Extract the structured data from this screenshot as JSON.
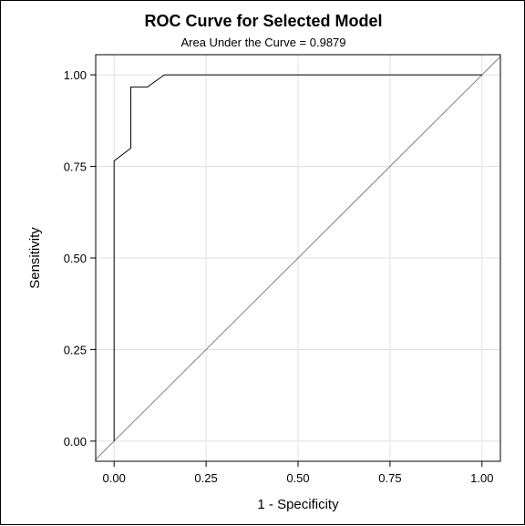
{
  "chart_data": {
    "type": "line",
    "title": "ROC Curve for Selected Model",
    "subtitle": "Area Under the Curve = 0.9879",
    "xlabel": "1 - Specificity",
    "ylabel": "Sensitivity",
    "xlim": [
      -0.05,
      1.05
    ],
    "ylim": [
      -0.055,
      1.055
    ],
    "xticks": [
      0.0,
      0.25,
      0.5,
      0.75,
      1.0
    ],
    "yticks": [
      0.0,
      0.25,
      0.5,
      0.75,
      1.0
    ],
    "xtick_labels": [
      "0.00",
      "0.25",
      "0.50",
      "0.75",
      "1.00"
    ],
    "ytick_labels": [
      "0.00",
      "0.25",
      "0.50",
      "0.75",
      "1.00"
    ],
    "grid": true,
    "series": [
      {
        "x": [
          0.0,
          0.0,
          0.0,
          0.0455,
          0.0455,
          0.0455,
          0.0909,
          0.1364,
          0.1364,
          1.0
        ],
        "y": [
          0.0,
          0.765,
          0.765,
          0.8,
          0.8,
          0.967,
          0.967,
          1.0,
          1.0,
          1.0
        ]
      }
    ],
    "reference_line": {
      "x": [
        -0.05,
        1.05
      ],
      "y": [
        -0.05,
        1.05
      ]
    },
    "colors": {
      "curve": "#000000",
      "reference": "#808080",
      "grid": "#e0e0e0",
      "frame": "#000000"
    }
  }
}
